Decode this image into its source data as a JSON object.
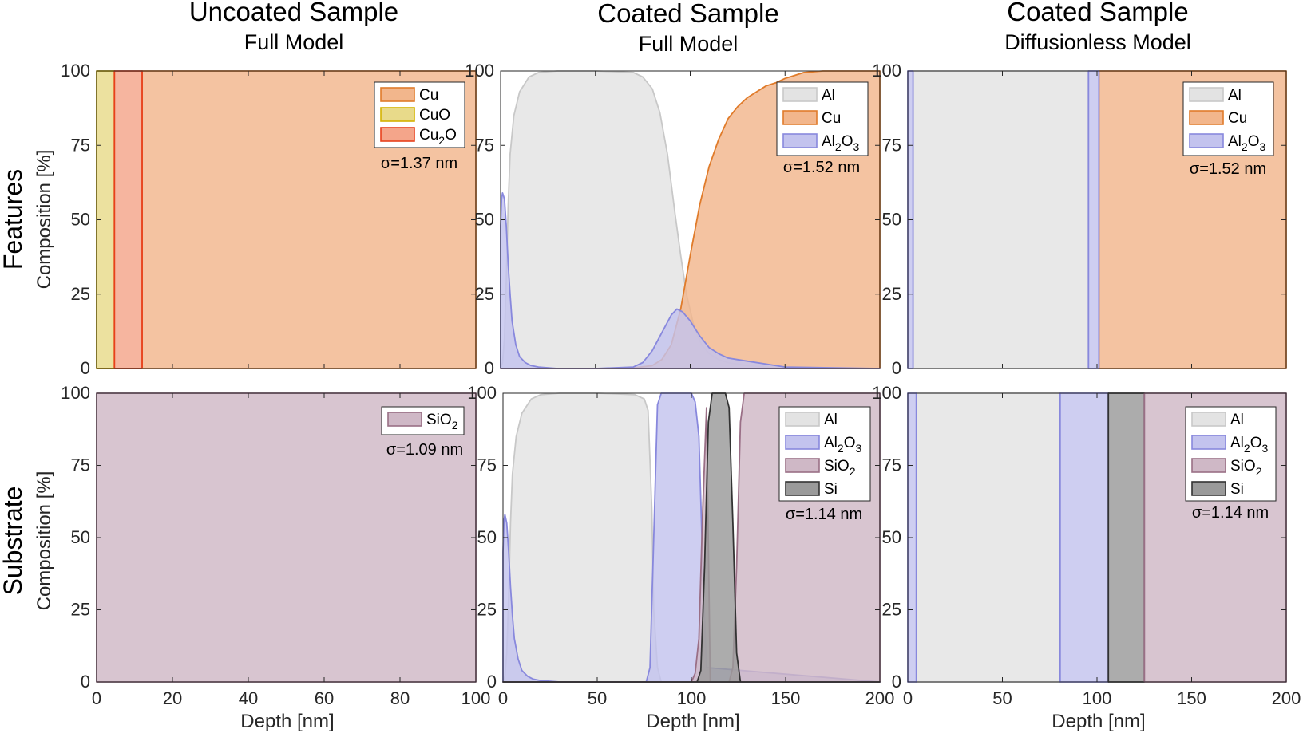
{
  "figure": {
    "columns": [
      {
        "title": "Uncoated Sample",
        "subtitle": "Full Model"
      },
      {
        "title": "Coated Sample",
        "subtitle": "Full Model"
      },
      {
        "title": "Coated Sample",
        "subtitle": "Diffusionless Model"
      }
    ],
    "rows": [
      {
        "label": "Features"
      },
      {
        "label": "Substrate"
      }
    ],
    "ylabel": "Composition [%]",
    "xlabel": "Depth [nm]"
  },
  "colors": {
    "Cu": {
      "fill": "#f2b68c",
      "stroke": "#e07b2a"
    },
    "CuO": {
      "fill": "#e8da8a",
      "stroke": "#d4b300"
    },
    "Cu2O": {
      "fill": "#f4a58a",
      "stroke": "#e8401c"
    },
    "Al": {
      "fill": "#e3e3e3",
      "stroke": "#c8c8c8"
    },
    "Al2O3": {
      "fill": "#c3c3ee",
      "stroke": "#8888dd"
    },
    "SiO2": {
      "fill": "#cfb8c6",
      "stroke": "#9a6f86"
    },
    "Si": {
      "fill": "#9a9a9a",
      "stroke": "#333333"
    }
  },
  "chart_data": [
    {
      "id": "uncoated-features",
      "type": "area",
      "xlim": [
        0,
        100
      ],
      "ylim": [
        0,
        100
      ],
      "xticks": [
        0,
        20,
        40,
        60,
        80,
        100
      ],
      "yticks": [
        0,
        25,
        50,
        75,
        100
      ],
      "sigma": "σ=1.37 nm",
      "legend": [
        {
          "key": "Cu",
          "text": "Cu"
        },
        {
          "key": "CuO",
          "text": "CuO"
        },
        {
          "key": "Cu2O",
          "text": "Cu",
          "sub": "2",
          "tail": "O"
        }
      ],
      "series": [
        {
          "key": "Cu",
          "x": [
            0,
            12,
            12,
            100
          ],
          "y": [
            0,
            0,
            100,
            100
          ]
        },
        {
          "key": "CuO",
          "x": [
            0,
            0,
            4.7,
            4.7
          ],
          "y": [
            0,
            100,
            100,
            0
          ]
        },
        {
          "key": "Cu2O",
          "x": [
            4.7,
            4.7,
            12,
            12
          ],
          "y": [
            0,
            100,
            100,
            0
          ]
        }
      ]
    },
    {
      "id": "coated-full-features",
      "type": "area",
      "xlim": [
        0,
        200
      ],
      "ylim": [
        0,
        100
      ],
      "xticks": [
        0,
        50,
        100,
        150,
        200
      ],
      "yticks": [
        0,
        25,
        50,
        75,
        100
      ],
      "sigma": "σ=1.52 nm",
      "legend": [
        {
          "key": "Al",
          "text": "Al"
        },
        {
          "key": "Cu",
          "text": "Cu"
        },
        {
          "key": "Al2O3",
          "text": "Al",
          "sub": "2",
          "tail": "O",
          "sub2": "3"
        }
      ],
      "series": [
        {
          "key": "Al",
          "x": [
            0,
            1,
            2,
            3,
            4,
            5,
            7,
            10,
            15,
            20,
            30,
            50,
            70,
            75,
            80,
            84,
            88,
            92,
            95,
            98,
            102,
            106,
            110,
            115,
            120,
            130,
            140,
            150,
            200
          ],
          "y": [
            0,
            2,
            10,
            30,
            55,
            72,
            85,
            93,
            98,
            99.5,
            100,
            100,
            99.5,
            98,
            94,
            86,
            72,
            52,
            38,
            25,
            14,
            8,
            5,
            3,
            2,
            1,
            0.5,
            0,
            0
          ]
        },
        {
          "key": "Cu",
          "x": [
            0,
            60,
            70,
            80,
            85,
            90,
            95,
            100,
            105,
            110,
            115,
            120,
            125,
            130,
            135,
            140,
            145,
            150,
            155,
            160,
            170,
            200
          ],
          "y": [
            0,
            0,
            0.2,
            1,
            3,
            8,
            20,
            38,
            55,
            68,
            77,
            84,
            88,
            91,
            93,
            95,
            96,
            97.5,
            98.5,
            99.5,
            100,
            100
          ]
        },
        {
          "key": "Al2O3",
          "x": [
            0,
            0.5,
            1,
            2,
            3,
            4,
            5,
            6,
            8,
            10,
            13,
            16,
            20,
            30,
            50,
            70,
            75,
            80,
            85,
            90,
            93,
            96,
            100,
            105,
            110,
            115,
            120,
            125,
            130,
            140,
            150,
            200
          ],
          "y": [
            48,
            57,
            59,
            57,
            48,
            35,
            25,
            16,
            8,
            4,
            2,
            1,
            0.5,
            0,
            0,
            0.5,
            2,
            6,
            12,
            18,
            20,
            19,
            16,
            11,
            7,
            5,
            3.5,
            3,
            2.5,
            1.5,
            0.5,
            0
          ]
        }
      ]
    },
    {
      "id": "coated-diffusionless-features",
      "type": "area",
      "xlim": [
        0,
        200
      ],
      "ylim": [
        0,
        100
      ],
      "xticks": [
        0,
        50,
        100,
        150,
        200
      ],
      "yticks": [
        0,
        25,
        50,
        75,
        100
      ],
      "sigma": "σ=1.52 nm",
      "legend": [
        {
          "key": "Al",
          "text": "Al"
        },
        {
          "key": "Cu",
          "text": "Cu"
        },
        {
          "key": "Al2O3",
          "text": "Al",
          "sub": "2",
          "tail": "O",
          "sub2": "3"
        }
      ],
      "series": [
        {
          "key": "Al",
          "x": [
            2.8,
            2.8,
            95.5,
            95.5
          ],
          "y": [
            0,
            100,
            100,
            0
          ]
        },
        {
          "key": "Cu",
          "x": [
            101,
            101,
            200,
            200
          ],
          "y": [
            0,
            100,
            100,
            0
          ]
        },
        {
          "key": "Al2O3",
          "x": [
            0,
            0,
            2.8,
            2.8
          ],
          "y": [
            0,
            100,
            100,
            0
          ]
        },
        {
          "key": "Al2O3",
          "x": [
            95.5,
            95.5,
            101,
            101
          ],
          "y": [
            0,
            100,
            100,
            0
          ]
        }
      ]
    },
    {
      "id": "uncoated-substrate",
      "type": "area",
      "xlim": [
        0,
        100
      ],
      "ylim": [
        0,
        100
      ],
      "xticks": [
        0,
        20,
        40,
        60,
        80,
        100
      ],
      "yticks": [
        0,
        25,
        50,
        75,
        100
      ],
      "sigma": "σ=1.09 nm",
      "legend": [
        {
          "key": "SiO2",
          "text": "SiO",
          "sub": "2"
        }
      ],
      "series": [
        {
          "key": "SiO2",
          "x": [
            0,
            0,
            100,
            100
          ],
          "y": [
            0,
            100,
            100,
            0
          ]
        }
      ]
    },
    {
      "id": "coated-full-substrate",
      "type": "area",
      "xlim": [
        0,
        200
      ],
      "ylim": [
        0,
        100
      ],
      "xticks": [
        0,
        50,
        100,
        150,
        200
      ],
      "yticks": [
        0,
        25,
        50,
        75,
        100
      ],
      "sigma": "σ=1.14 nm",
      "legend": [
        {
          "key": "Al",
          "text": "Al"
        },
        {
          "key": "Al2O3",
          "text": "Al",
          "sub": "2",
          "tail": "O",
          "sub2": "3"
        },
        {
          "key": "SiO2",
          "text": "SiO",
          "sub": "2"
        },
        {
          "key": "Si",
          "text": "Si"
        }
      ],
      "series": [
        {
          "key": "Al",
          "x": [
            0,
            1,
            2,
            3,
            4,
            5,
            7,
            10,
            15,
            20,
            30,
            50,
            70,
            75,
            77,
            79,
            80,
            82,
            84,
            90,
            200
          ],
          "y": [
            0,
            2,
            10,
            30,
            55,
            72,
            85,
            93,
            98,
            99.5,
            100,
            100,
            99.5,
            98,
            94,
            60,
            25,
            5,
            0,
            0,
            0
          ]
        },
        {
          "key": "Al2O3",
          "x": [
            0,
            0.5,
            1,
            2,
            3,
            4,
            5,
            6,
            8,
            10,
            13,
            16,
            20,
            30,
            76,
            78,
            80,
            82,
            84,
            86,
            90,
            100,
            102,
            104,
            106,
            108,
            200
          ],
          "y": [
            45,
            56,
            58,
            55,
            45,
            33,
            23,
            15,
            8,
            4,
            2,
            1,
            0.5,
            0,
            0,
            5,
            50,
            96,
            100,
            100,
            100,
            100,
            97,
            85,
            40,
            5,
            0
          ]
        },
        {
          "key": "SiO2",
          "x": [
            0,
            100,
            102,
            104,
            106,
            108,
            110,
            120,
            122,
            124,
            126,
            128,
            200
          ],
          "y": [
            0,
            0,
            3,
            15,
            60,
            95,
            0,
            0,
            5,
            40,
            90,
            100,
            100
          ]
        },
        {
          "key": "Si",
          "x": [
            0,
            103,
            105,
            107,
            109,
            111,
            113,
            118,
            120,
            122,
            124,
            126,
            200
          ],
          "y": [
            0,
            0,
            4,
            40,
            90,
            100,
            100,
            100,
            95,
            55,
            10,
            0,
            0
          ]
        }
      ]
    },
    {
      "id": "coated-diffusionless-substrate",
      "type": "area",
      "xlim": [
        0,
        200
      ],
      "ylim": [
        0,
        100
      ],
      "xticks": [
        0,
        50,
        100,
        150,
        200
      ],
      "yticks": [
        0,
        25,
        50,
        75,
        100
      ],
      "sigma": "σ=1.14 nm",
      "legend": [
        {
          "key": "Al",
          "text": "Al"
        },
        {
          "key": "Al2O3",
          "text": "Al",
          "sub": "2",
          "tail": "O",
          "sub2": "3"
        },
        {
          "key": "SiO2",
          "text": "SiO",
          "sub": "2"
        },
        {
          "key": "Si",
          "text": "Si"
        }
      ],
      "series": [
        {
          "key": "Al",
          "x": [
            4.5,
            4.5,
            80.5,
            80.5
          ],
          "y": [
            0,
            100,
            100,
            0
          ]
        },
        {
          "key": "Al2O3",
          "x": [
            0,
            0,
            4.5,
            4.5
          ],
          "y": [
            0,
            100,
            100,
            0
          ]
        },
        {
          "key": "Al2O3",
          "x": [
            80.5,
            80.5,
            106,
            106
          ],
          "y": [
            0,
            100,
            100,
            0
          ]
        },
        {
          "key": "Si",
          "x": [
            106,
            106,
            125,
            125
          ],
          "y": [
            0,
            100,
            100,
            0
          ]
        },
        {
          "key": "SiO2",
          "x": [
            125,
            125,
            200,
            200
          ],
          "y": [
            0,
            100,
            100,
            0
          ]
        }
      ]
    }
  ]
}
